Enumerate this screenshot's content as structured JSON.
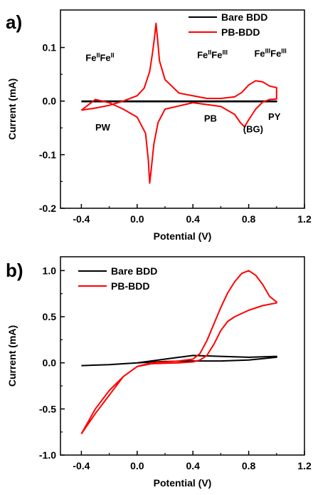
{
  "chart_data": [
    {
      "type": "line",
      "panel_label": "a)",
      "xlabel": "Potential (V)",
      "ylabel": "Current (mA)",
      "xlim": [
        -0.55,
        1.2
      ],
      "ylim": [
        -0.2,
        0.17
      ],
      "xticks": [
        "-0.4",
        "0.0",
        "0.4",
        "0.8",
        "1.2"
      ],
      "yticks": [
        "-0.2",
        "-0.1",
        "0.0",
        "0.1"
      ],
      "legend_position": "top-right",
      "series": [
        {
          "name": "Bare BDD",
          "color": "#000000",
          "x": [
            -0.4,
            1.0,
            1.0,
            -0.4
          ],
          "y": [
            0.0,
            0.0,
            -0.001,
            -0.001
          ]
        },
        {
          "name": "PB-BDD",
          "color": "#ff0000",
          "x": [
            -0.4,
            -0.3,
            -0.2,
            -0.1,
            0.0,
            0.05,
            0.09,
            0.11,
            0.125,
            0.135,
            0.145,
            0.16,
            0.2,
            0.3,
            0.5,
            0.6,
            0.7,
            0.75,
            0.8,
            0.85,
            0.9,
            0.95,
            1.0,
            1.0,
            0.95,
            0.9,
            0.85,
            0.8,
            0.77,
            0.74,
            0.7,
            0.6,
            0.4,
            0.2,
            0.15,
            0.12,
            0.1,
            0.09,
            0.08,
            0.06,
            0.0,
            -0.1,
            -0.2,
            -0.3,
            -0.4
          ],
          "y": [
            -0.017,
            -0.013,
            -0.008,
            0.0,
            0.01,
            0.024,
            0.055,
            0.09,
            0.12,
            0.145,
            0.12,
            0.075,
            0.04,
            0.015,
            0.005,
            0.005,
            0.008,
            0.016,
            0.03,
            0.038,
            0.036,
            0.028,
            0.025,
            0.004,
            0.003,
            -0.002,
            -0.015,
            -0.035,
            -0.048,
            -0.04,
            -0.025,
            -0.01,
            -0.003,
            -0.015,
            -0.04,
            -0.08,
            -0.13,
            -0.153,
            -0.11,
            -0.06,
            -0.03,
            -0.015,
            -0.003,
            0.003,
            -0.017
          ]
        }
      ],
      "annotations": [
        {
          "parts": [
            {
              "t": "Fe"
            },
            {
              "t": "II",
              "sup": true
            },
            {
              "t": "Fe"
            },
            {
              "t": "II",
              "sup": true
            }
          ],
          "x": -0.37,
          "y": 0.075
        },
        {
          "parts": [
            {
              "t": "Fe"
            },
            {
              "t": "II",
              "sup": true
            },
            {
              "t": "Fe"
            },
            {
              "t": "III",
              "sup": true
            }
          ],
          "x": 0.43,
          "y": 0.08
        },
        {
          "parts": [
            {
              "t": "Fe"
            },
            {
              "t": "III",
              "sup": true
            },
            {
              "t": "Fe"
            },
            {
              "t": "III",
              "sup": true
            }
          ],
          "x": 0.84,
          "y": 0.083
        },
        {
          "parts": [
            {
              "t": "PW"
            }
          ],
          "x": -0.3,
          "y": -0.055
        },
        {
          "parts": [
            {
              "t": "PB"
            }
          ],
          "x": 0.48,
          "y": -0.038
        },
        {
          "parts": [
            {
              "t": "PY"
            }
          ],
          "x": 0.94,
          "y": -0.035
        },
        {
          "parts": [
            {
              "t": "(BG)"
            }
          ],
          "x": 0.76,
          "y": -0.058
        }
      ]
    },
    {
      "type": "line",
      "panel_label": "b)",
      "xlabel": "Potential (V)",
      "ylabel": "Current (mA)",
      "xlim": [
        -0.55,
        1.2
      ],
      "ylim": [
        -1.0,
        1.15
      ],
      "xticks": [
        "-0.4",
        "0.0",
        "0.4",
        "0.8",
        "1.2"
      ],
      "yticks": [
        "-1.0",
        "-0.5",
        "0.0",
        "0.5",
        "1.0"
      ],
      "legend_position": "top-left",
      "series": [
        {
          "name": "Bare BDD",
          "color": "#000000",
          "x": [
            -0.4,
            -0.2,
            0.0,
            0.2,
            0.3,
            0.4,
            0.6,
            0.8,
            1.0,
            1.0,
            0.8,
            0.6,
            0.4,
            0.2,
            0.0,
            -0.2,
            -0.4
          ],
          "y": [
            -0.03,
            -0.02,
            0.0,
            0.04,
            0.06,
            0.08,
            0.07,
            0.06,
            0.07,
            0.06,
            0.03,
            0.02,
            0.02,
            0.015,
            0.0,
            -0.02,
            -0.03
          ]
        },
        {
          "name": "PB-BDD",
          "color": "#ff0000",
          "x": [
            -0.4,
            -0.3,
            -0.2,
            -0.1,
            0.0,
            0.1,
            0.2,
            0.3,
            0.4,
            0.45,
            0.5,
            0.55,
            0.6,
            0.65,
            0.7,
            0.75,
            0.8,
            0.85,
            0.9,
            0.95,
            1.0,
            1.0,
            0.9,
            0.8,
            0.7,
            0.65,
            0.6,
            0.55,
            0.5,
            0.45,
            0.4,
            0.3,
            0.2,
            0.1,
            0.0,
            -0.1,
            -0.2,
            -0.3,
            -0.4
          ],
          "y": [
            -0.77,
            -0.5,
            -0.3,
            -0.15,
            -0.04,
            0.0,
            0.01,
            0.02,
            0.04,
            0.1,
            0.24,
            0.42,
            0.6,
            0.76,
            0.88,
            0.97,
            1.0,
            0.95,
            0.85,
            0.72,
            0.66,
            0.65,
            0.62,
            0.57,
            0.5,
            0.45,
            0.35,
            0.2,
            0.08,
            0.03,
            0.01,
            0.0,
            -0.005,
            -0.01,
            -0.04,
            -0.15,
            -0.35,
            -0.55,
            -0.77
          ]
        }
      ],
      "annotations": []
    }
  ]
}
